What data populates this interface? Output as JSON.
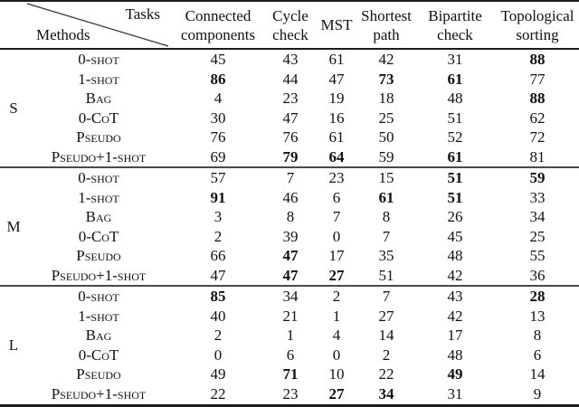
{
  "table": {
    "corner": {
      "top_right": "Tasks",
      "bottom_left": "Methods"
    },
    "columns": [
      {
        "label": "Connected components",
        "lines": [
          "Connected",
          "components"
        ]
      },
      {
        "label": "Cycle check",
        "lines": [
          "Cycle",
          "check"
        ]
      },
      {
        "label": "MST",
        "lines": [
          "MST"
        ]
      },
      {
        "label": "Shortest path",
        "lines": [
          "Shortest",
          "path"
        ]
      },
      {
        "label": "Bipartite check",
        "lines": [
          "Bipartite",
          "check"
        ]
      },
      {
        "label": "Topological sorting",
        "lines": [
          "Topological",
          "sorting"
        ]
      }
    ],
    "groups": [
      {
        "label": "S",
        "rows": [
          {
            "method": "0-shot",
            "values": [
              45,
              43,
              61,
              42,
              31,
              88
            ],
            "bold": [
              false,
              false,
              false,
              false,
              false,
              true
            ]
          },
          {
            "method": "1-shot",
            "values": [
              86,
              44,
              47,
              73,
              61,
              77
            ],
            "bold": [
              true,
              false,
              false,
              true,
              true,
              false
            ]
          },
          {
            "method": "Bag",
            "values": [
              4,
              23,
              19,
              18,
              48,
              88
            ],
            "bold": [
              false,
              false,
              false,
              false,
              false,
              true
            ]
          },
          {
            "method": "0-CoT",
            "values": [
              30,
              47,
              16,
              25,
              51,
              62
            ],
            "bold": [
              false,
              false,
              false,
              false,
              false,
              false
            ]
          },
          {
            "method": "Pseudo",
            "values": [
              76,
              76,
              61,
              50,
              52,
              72
            ],
            "bold": [
              false,
              false,
              false,
              false,
              false,
              false
            ]
          },
          {
            "method": "Pseudo+1-shot",
            "values": [
              69,
              79,
              64,
              59,
              61,
              81
            ],
            "bold": [
              false,
              true,
              true,
              false,
              true,
              false
            ]
          }
        ]
      },
      {
        "label": "M",
        "rows": [
          {
            "method": "0-shot",
            "values": [
              57,
              7,
              23,
              15,
              51,
              59
            ],
            "bold": [
              false,
              false,
              false,
              false,
              true,
              true
            ]
          },
          {
            "method": "1-shot",
            "values": [
              91,
              46,
              6,
              61,
              51,
              33
            ],
            "bold": [
              true,
              false,
              false,
              true,
              true,
              false
            ]
          },
          {
            "method": "Bag",
            "values": [
              3,
              8,
              7,
              8,
              26,
              34
            ],
            "bold": [
              false,
              false,
              false,
              false,
              false,
              false
            ]
          },
          {
            "method": "0-CoT",
            "values": [
              2,
              39,
              0,
              7,
              45,
              25
            ],
            "bold": [
              false,
              false,
              false,
              false,
              false,
              false
            ]
          },
          {
            "method": "Pseudo",
            "values": [
              66,
              47,
              17,
              35,
              48,
              55
            ],
            "bold": [
              false,
              true,
              false,
              false,
              false,
              false
            ]
          },
          {
            "method": "Pseudo+1-shot",
            "values": [
              47,
              47,
              27,
              51,
              42,
              36
            ],
            "bold": [
              false,
              true,
              true,
              false,
              false,
              false
            ]
          }
        ]
      },
      {
        "label": "L",
        "rows": [
          {
            "method": "0-shot",
            "values": [
              85,
              34,
              2,
              7,
              43,
              28
            ],
            "bold": [
              true,
              false,
              false,
              false,
              false,
              true
            ]
          },
          {
            "method": "1-shot",
            "values": [
              40,
              21,
              1,
              27,
              42,
              13
            ],
            "bold": [
              false,
              false,
              false,
              false,
              false,
              false
            ]
          },
          {
            "method": "Bag",
            "values": [
              2,
              1,
              4,
              14,
              17,
              8
            ],
            "bold": [
              false,
              false,
              false,
              false,
              false,
              false
            ]
          },
          {
            "method": "0-CoT",
            "values": [
              0,
              6,
              0,
              2,
              48,
              6
            ],
            "bold": [
              false,
              false,
              false,
              false,
              false,
              false
            ]
          },
          {
            "method": "Pseudo",
            "values": [
              49,
              71,
              10,
              22,
              49,
              14
            ],
            "bold": [
              false,
              true,
              false,
              false,
              true,
              false
            ]
          },
          {
            "method": "Pseudo+1-shot",
            "values": [
              22,
              23,
              27,
              34,
              31,
              9
            ],
            "bold": [
              false,
              false,
              true,
              true,
              false,
              false
            ]
          }
        ]
      }
    ],
    "colors": {
      "text": "#111111",
      "rule_heavy": "#1c1c1c",
      "rule_light": "#4a4a4a",
      "background": "#ffffff"
    }
  }
}
